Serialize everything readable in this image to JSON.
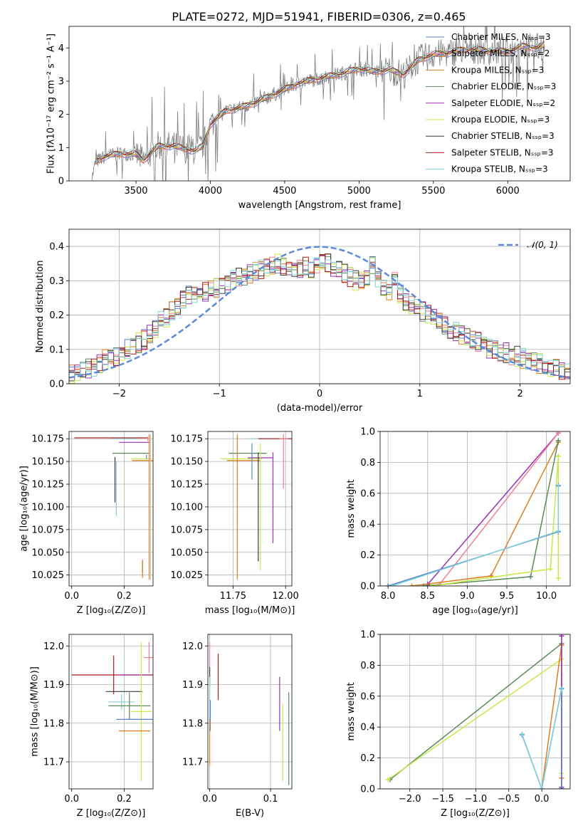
{
  "figure": {
    "title": "PLATE=0272, MJD=51941, FIBERID=0306, z=0.465"
  },
  "colors": {
    "Chabrier MILES": "#5b7fd6",
    "Salpeter MILES": "#f07f8f",
    "Kroupa MILES": "#e07b20",
    "Chabrier ELODIE": "#5a8a5a",
    "Salpeter ELODIE": "#9b30b0",
    "Kroupa ELODIE": "#c8e84a",
    "Chabrier STELIB": "#3a3a3a",
    "Salpeter STELIB": "#b01818",
    "Kroupa STELIB": "#7fd2d8",
    "data": "#808080",
    "normal": "#5b8bd8",
    "grid": "#b0b0b0"
  },
  "chart_data": [
    {
      "id": "spectrum",
      "type": "line",
      "xlabel": "wavelength [Angstrom, rest frame]",
      "ylabel": "Flux [fλ10⁻¹⁷ erg cm⁻² s⁻¹ A⁻¹]",
      "xlim": [
        3050,
        6420
      ],
      "ylim": [
        0,
        4.65
      ],
      "xticks": [
        3500,
        4000,
        4500,
        5000,
        5500,
        6000
      ],
      "yticks": [
        0,
        1,
        2,
        3,
        4
      ],
      "grid": false,
      "legend_position": "right",
      "legend": [
        "Chabrier MILES, N_SSP=3",
        "Salpeter MILES, N_SSP=2",
        "Kroupa MILES, N_SSP=3",
        "Chabrier ELODIE, N_SSP=3",
        "Salpeter ELODIE, N_SSP=2",
        "Kroupa ELODIE, N_SSP=3",
        "Chabrier STELIB, N_SSP=3",
        "Salpeter STELIB, N_SSP=3",
        "Kroupa STELIB, N_SSP=3"
      ],
      "continuum": {
        "x": [
          3200,
          3230,
          3300,
          3400,
          3500,
          3550,
          3650,
          3750,
          3850,
          3900,
          3950,
          4000,
          4100,
          4200,
          4300,
          4400,
          4500,
          4600,
          4700,
          4800,
          4900,
          5000,
          5100,
          5200,
          5300,
          5400,
          5500,
          5600,
          5700,
          5800,
          5900,
          6000,
          6100,
          6200,
          6250
        ],
        "y": [
          0.0,
          0.58,
          0.75,
          0.82,
          0.8,
          0.62,
          1.05,
          1.05,
          0.95,
          0.9,
          1.05,
          1.7,
          2.1,
          2.2,
          2.35,
          2.55,
          2.75,
          2.95,
          3.05,
          3.15,
          3.25,
          3.38,
          3.28,
          3.35,
          3.2,
          3.65,
          3.8,
          3.85,
          3.95,
          3.95,
          3.9,
          3.9,
          4.05,
          4.0,
          4.1
        ]
      }
    },
    {
      "id": "residual-histogram",
      "type": "line",
      "xlabel": "(data-model)/error",
      "ylabel": "Normed distribution",
      "xlim": [
        -2.5,
        2.5
      ],
      "ylim": [
        0,
        0.45
      ],
      "xticks": [
        -2,
        -1,
        0,
        1,
        2
      ],
      "yticks": [
        0.0,
        0.1,
        0.2,
        0.3,
        0.4
      ],
      "grid": true,
      "legend": [
        "𝒩(0, 1)"
      ],
      "legend_position": "top-right",
      "bin_width": 0.1,
      "base_profile": [
        0.025,
        0.03,
        0.04,
        0.045,
        0.05,
        0.06,
        0.07,
        0.075,
        0.08,
        0.09,
        0.1,
        0.11,
        0.12,
        0.13,
        0.145,
        0.16,
        0.18,
        0.19,
        0.21,
        0.23,
        0.25,
        0.255,
        0.26,
        0.265,
        0.27,
        0.275,
        0.28,
        0.285,
        0.295,
        0.3,
        0.31,
        0.315,
        0.32,
        0.33,
        0.335,
        0.34,
        0.345,
        0.35,
        0.34,
        0.335,
        0.33,
        0.335,
        0.34,
        0.33,
        0.345,
        0.36,
        0.35,
        0.34,
        0.33,
        0.32,
        0.31,
        0.3,
        0.3,
        0.31,
        0.35,
        0.3,
        0.28,
        0.27,
        0.3,
        0.26,
        0.24,
        0.23,
        0.22,
        0.21,
        0.2,
        0.19,
        0.18,
        0.17,
        0.16,
        0.15,
        0.14,
        0.135,
        0.13,
        0.12,
        0.11,
        0.1,
        0.1,
        0.095,
        0.09,
        0.085,
        0.08,
        0.075,
        0.07,
        0.065,
        0.06,
        0.055,
        0.05,
        0.045,
        0.04,
        0.035
      ]
    },
    {
      "id": "age-vs-Z",
      "type": "scatter",
      "xlabel": "Z [log₁₀(Z/Z⊙)]",
      "ylabel": "age  [log₁₀(age/yr)]",
      "xlim": [
        -0.01,
        0.31
      ],
      "ylim": [
        10.013,
        10.183
      ],
      "xticks": [
        0.0,
        0.2
      ],
      "yticks": [
        10.025,
        10.05,
        10.075,
        10.1,
        10.125,
        10.15,
        10.175
      ],
      "grid": true,
      "points": [
        {
          "model": "Salpeter STELIB",
          "x": 0.15,
          "y": 10.176,
          "xerr": 0.14,
          "yerr": 0.0
        },
        {
          "model": "Kroupa STELIB",
          "x": 0.2,
          "y": 10.175,
          "xerr": 0.05,
          "yerr": 0.0
        },
        {
          "model": "Salpeter MILES",
          "x": 0.29,
          "y": 10.175,
          "xerr": 0.0,
          "yerr": 0.0
        },
        {
          "model": "Salpeter ELODIE",
          "x": 0.24,
          "y": 10.171,
          "xerr": 0.06,
          "yerr": 0.0
        },
        {
          "model": "Chabrier ELODIE",
          "x": 0.225,
          "y": 10.159,
          "xerr": 0.07,
          "yerr": 0.0
        },
        {
          "model": "Kroupa ELODIE",
          "x": 0.265,
          "y": 10.153,
          "xerr": 0.04,
          "yerr": 0.0
        },
        {
          "model": "Kroupa MILES",
          "x": 0.27,
          "y": 10.151,
          "xerr": 0.04,
          "yerr": 0.0
        },
        {
          "model": "Chabrier MILES",
          "x": 0.285,
          "y": 10.155,
          "xerr": 0.0,
          "yerr": 0.0
        },
        {
          "model": "Chabrier STELIB",
          "x": 0.165,
          "y": 10.13,
          "xerr": 0.0,
          "yerr": 0.025
        },
        {
          "model": "Kroupa STELIB",
          "x": 0.17,
          "y": 10.12,
          "xerr": 0.0,
          "yerr": 0.03
        },
        {
          "model": "Chabrier ELODIE",
          "x": 0.27,
          "y": 10.034,
          "xerr": 0.0,
          "yerr": 0.006
        },
        {
          "model": "Kroupa MILES",
          "x": 0.27,
          "y": 10.032,
          "xerr": 0.0,
          "yerr": 0.01
        },
        {
          "model": "Salpeter ELODIE",
          "x": 0.3,
          "y": 10.1,
          "xerr": 0.0,
          "yerr": 0.08
        },
        {
          "model": "Salpeter MILES",
          "x": 0.295,
          "y": 10.1,
          "xerr": 0.0,
          "yerr": 0.08
        },
        {
          "model": "Kroupa ELODIE",
          "x": 0.3,
          "y": 10.1,
          "xerr": 0.0,
          "yerr": 0.08
        }
      ]
    },
    {
      "id": "age-vs-mass",
      "type": "scatter",
      "xlabel": "mass [log₁₀(M/M⊙)]",
      "ylabel": "",
      "xlim": [
        11.63,
        12.03
      ],
      "ylim": [
        10.013,
        10.183
      ],
      "xticks": [
        11.75,
        12.0
      ],
      "yticks": [
        10.025,
        10.05,
        10.075,
        10.1,
        10.125,
        10.15,
        10.175
      ],
      "grid": true,
      "points": [
        {
          "model": "Kroupa STELIB",
          "x": 11.9,
          "y": 10.175,
          "xerr": 0.08,
          "yerr": 0.0
        },
        {
          "model": "Salpeter STELIB",
          "x": 11.95,
          "y": 10.175,
          "xerr": 0.08,
          "yerr": 0.0
        },
        {
          "model": "Salpeter MILES",
          "x": 11.99,
          "y": 10.175,
          "xerr": 0.02,
          "yerr": 0.0
        },
        {
          "model": "Chabrier ELODIE",
          "x": 11.82,
          "y": 10.159,
          "xerr": 0.09,
          "yerr": 0.0
        },
        {
          "model": "Salpeter ELODIE",
          "x": 11.88,
          "y": 10.154,
          "xerr": 0.06,
          "yerr": 0.0
        },
        {
          "model": "Kroupa ELODIE",
          "x": 11.79,
          "y": 10.153,
          "xerr": 0.1,
          "yerr": 0.0
        },
        {
          "model": "Kroupa MILES",
          "x": 11.8,
          "y": 10.151,
          "xerr": 0.08,
          "yerr": 0.0
        },
        {
          "model": "Chabrier MILES",
          "x": 11.84,
          "y": 10.15,
          "xerr": 0.0,
          "yerr": 0.02
        },
        {
          "model": "Chabrier STELIB",
          "x": 11.87,
          "y": 10.1,
          "xerr": 0.0,
          "yerr": 0.06
        },
        {
          "model": "Kroupa MILES",
          "x": 11.77,
          "y": 10.1,
          "xerr": 0.0,
          "yerr": 0.08
        },
        {
          "model": "Kroupa ELODIE",
          "x": 11.88,
          "y": 10.1,
          "xerr": 0.0,
          "yerr": 0.07
        },
        {
          "model": "Salpeter ELODIE",
          "x": 11.94,
          "y": 10.11,
          "xerr": 0.0,
          "yerr": 0.05
        },
        {
          "model": "Salpeter MILES",
          "x": 11.99,
          "y": 10.15,
          "xerr": 0.0,
          "yerr": 0.03
        }
      ]
    },
    {
      "id": "massweight-vs-age",
      "type": "line",
      "xlabel": "age  [log₁₀(age/yr)]",
      "ylabel": "mass weight",
      "xlim": [
        7.9,
        10.3
      ],
      "ylim": [
        0.0,
        1.0
      ],
      "xticks": [
        8.0,
        8.5,
        9.0,
        9.5,
        10.0
      ],
      "yticks": [
        0.0,
        0.2,
        0.4,
        0.6,
        0.8,
        1.0
      ],
      "grid": true,
      "series": [
        {
          "model": "Salpeter ELODIE",
          "x": [
            8.5,
            10.15
          ],
          "y": [
            0.01,
            0.99
          ]
        },
        {
          "model": "Salpeter MILES",
          "x": [
            8.65,
            10.15
          ],
          "y": [
            0.01,
            0.99
          ]
        },
        {
          "model": "Kroupa MILES",
          "x": [
            8.3,
            9.3,
            10.15
          ],
          "y": [
            0.0,
            0.065,
            0.93
          ]
        },
        {
          "model": "Chabrier ELODIE",
          "x": [
            8.45,
            9.8,
            10.15
          ],
          "y": [
            0.0,
            0.06,
            0.94
          ]
        },
        {
          "model": "Kroupa ELODIE",
          "x": [
            8.55,
            10.05,
            10.15,
            10.15
          ],
          "y": [
            0.0,
            0.11,
            0.84,
            0.05
          ]
        },
        {
          "model": "Chabrier MILES",
          "x": [
            8.0,
            10.15,
            10.15
          ],
          "y": [
            0.0,
            0.35,
            0.65
          ]
        },
        {
          "model": "Kroupa STELIB",
          "x": [
            8.05,
            10.15,
            10.15
          ],
          "y": [
            0.0,
            0.355,
            0.645
          ]
        }
      ]
    },
    {
      "id": "mass-vs-Z",
      "type": "scatter",
      "xlabel": "Z [log₁₀(Z/Z⊙)]",
      "ylabel": "mass [log₁₀(M/M⊙)]",
      "xlim": [
        -0.01,
        0.31
      ],
      "ylim": [
        11.63,
        12.03
      ],
      "xticks": [
        0.0,
        0.2
      ],
      "yticks": [
        11.7,
        11.8,
        11.9,
        12.0
      ],
      "grid": true,
      "points": [
        {
          "model": "Salpeter STELIB",
          "x": 0.16,
          "y": 11.925,
          "xerr": 0.16,
          "yerr": 0.05
        },
        {
          "model": "Salpeter ELODIE",
          "x": 0.24,
          "y": 11.925,
          "xerr": 0.06,
          "yerr": 0.0
        },
        {
          "model": "Chabrier STELIB",
          "x": 0.2,
          "y": 11.882,
          "xerr": 0.07,
          "yerr": 0.0
        },
        {
          "model": "Kroupa STELIB",
          "x": 0.19,
          "y": 11.855,
          "xerr": 0.05,
          "yerr": 0.02
        },
        {
          "model": "Chabrier ELODIE",
          "x": 0.22,
          "y": 11.845,
          "xerr": 0.08,
          "yerr": 0.035
        },
        {
          "model": "Kroupa ELODIE",
          "x": 0.265,
          "y": 11.83,
          "xerr": 0.04,
          "yerr": 0.18
        },
        {
          "model": "Chabrier MILES",
          "x": 0.24,
          "y": 11.81,
          "xerr": 0.07,
          "yerr": 0.0
        },
        {
          "model": "Kroupa MILES",
          "x": 0.24,
          "y": 11.78,
          "xerr": 0.06,
          "yerr": 0.0
        },
        {
          "model": "Salpeter MILES",
          "x": 0.295,
          "y": 11.97,
          "xerr": 0.02,
          "yerr": 0.04
        }
      ]
    },
    {
      "id": "mass-vs-EBV",
      "type": "scatter",
      "xlabel": "E(B-V)",
      "ylabel": "",
      "xlim": [
        -0.003,
        0.135
      ],
      "ylim": [
        11.63,
        12.03
      ],
      "xticks": [
        0.0,
        0.1
      ],
      "yticks": [
        11.7,
        11.8,
        11.9,
        12.0
      ],
      "grid": true,
      "points": [
        {
          "model": "Salpeter MILES",
          "x": 0.0,
          "y": 11.96,
          "xerr": 0.0,
          "yerr": 0.05
        },
        {
          "model": "Chabrier STELIB",
          "x": 0.0,
          "y": 11.92,
          "xerr": 0.0,
          "yerr": 0.025
        },
        {
          "model": "Kroupa STELIB",
          "x": 0.0,
          "y": 11.86,
          "xerr": 0.0,
          "yerr": 0.06
        },
        {
          "model": "Chabrier MILES",
          "x": 0.001,
          "y": 11.82,
          "xerr": 0.0,
          "yerr": 0.04
        },
        {
          "model": "Kroupa MILES",
          "x": 0.0,
          "y": 11.75,
          "xerr": 0.0,
          "yerr": 0.06
        },
        {
          "model": "Salpeter STELIB",
          "x": 0.014,
          "y": 11.92,
          "xerr": 0.0,
          "yerr": 0.06
        },
        {
          "model": "Salpeter ELODIE",
          "x": 0.115,
          "y": 11.85,
          "xerr": 0.0,
          "yerr": 0.07
        },
        {
          "model": "Kroupa ELODIE",
          "x": 0.12,
          "y": 11.75,
          "xerr": 0.0,
          "yerr": 0.1
        },
        {
          "model": "Chabrier ELODIE",
          "x": 0.13,
          "y": 11.76,
          "xerr": 0.0,
          "yerr": 0.12
        }
      ]
    },
    {
      "id": "massweight-vs-Z",
      "type": "line",
      "xlabel": "Z [log₁₀(Z/Z⊙)]",
      "ylabel": "mass weight",
      "xlim": [
        -2.45,
        0.43
      ],
      "ylim": [
        0.0,
        1.0
      ],
      "xticks": [
        -2.0,
        -1.5,
        -1.0,
        -0.5,
        0.0
      ],
      "yticks": [
        0.0,
        0.2,
        0.4,
        0.6,
        0.8,
        1.0
      ],
      "grid": true,
      "series": [
        {
          "model": "Chabrier ELODIE",
          "x": [
            -2.3,
            0.3,
            0.3
          ],
          "y": [
            0.06,
            0.94,
            0.0
          ]
        },
        {
          "model": "Kroupa ELODIE",
          "x": [
            -2.33,
            0.3,
            0.3
          ],
          "y": [
            0.06,
            0.84,
            0.1
          ]
        },
        {
          "model": "Kroupa MILES",
          "x": [
            0.0,
            0.3,
            0.3
          ],
          "y": [
            0.0,
            0.93,
            0.07
          ]
        },
        {
          "model": "Salpeter ELODIE",
          "x": [
            0.3,
            0.3
          ],
          "y": [
            0.99,
            0.01
          ]
        },
        {
          "model": "Chabrier MILES",
          "x": [
            -0.3,
            0.0,
            0.3,
            0.3
          ],
          "y": [
            0.35,
            0.0,
            0.65,
            0.0
          ]
        },
        {
          "model": "Kroupa STELIB",
          "x": [
            -0.3,
            0.0,
            0.3
          ],
          "y": [
            0.355,
            0.0,
            0.645
          ]
        }
      ]
    }
  ]
}
